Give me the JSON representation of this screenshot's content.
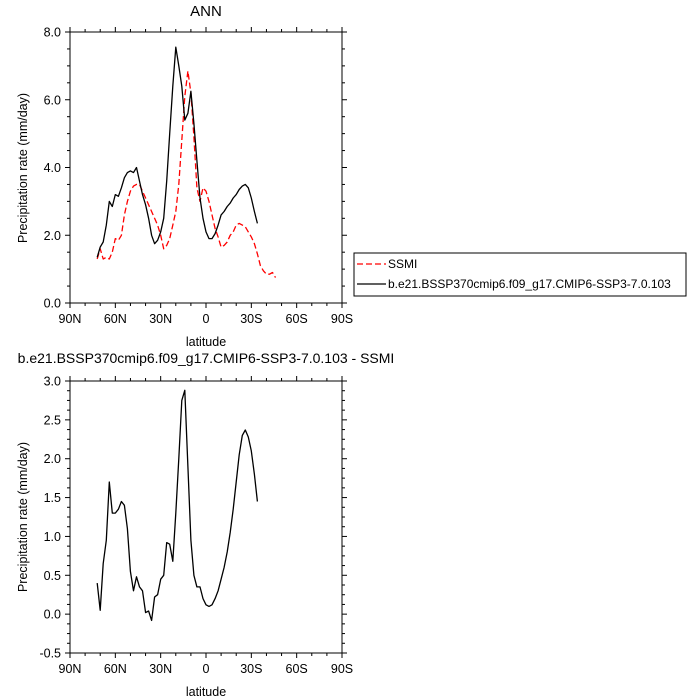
{
  "chart_data": [
    {
      "type": "line",
      "title": "ANN",
      "xlabel": "latitude",
      "ylabel": "Precipitation rate (mm/day)",
      "xlim": [
        90,
        -90
      ],
      "ylim": [
        0,
        8
      ],
      "xticks": [
        {
          "v": 90,
          "label": "90N"
        },
        {
          "v": 60,
          "label": "60N"
        },
        {
          "v": 30,
          "label": "30N"
        },
        {
          "v": 0,
          "label": "0"
        },
        {
          "v": -30,
          "label": "30S"
        },
        {
          "v": -60,
          "label": "60S"
        },
        {
          "v": -90,
          "label": "90S"
        }
      ],
      "yticks": [
        {
          "v": 0,
          "label": "0.0"
        },
        {
          "v": 2,
          "label": "2.0"
        },
        {
          "v": 4,
          "label": "4.0"
        },
        {
          "v": 6,
          "label": "6.0"
        },
        {
          "v": 8,
          "label": "8.0"
        }
      ],
      "legend": "right",
      "series": [
        {
          "name": "SSMI",
          "color": "#ff0000",
          "dash": true,
          "points": [
            [
              72,
              1.3
            ],
            [
              70,
              1.6
            ],
            [
              68,
              1.3
            ],
            [
              66,
              1.35
            ],
            [
              64,
              1.3
            ],
            [
              62,
              1.5
            ],
            [
              60,
              1.9
            ],
            [
              58,
              1.85
            ],
            [
              56,
              2.0
            ],
            [
              54,
              2.6
            ],
            [
              52,
              3.0
            ],
            [
              50,
              3.3
            ],
            [
              48,
              3.45
            ],
            [
              46,
              3.5
            ],
            [
              44,
              3.5
            ],
            [
              42,
              3.3
            ],
            [
              40,
              3.1
            ],
            [
              38,
              2.9
            ],
            [
              36,
              2.7
            ],
            [
              34,
              2.5
            ],
            [
              32,
              2.3
            ],
            [
              30,
              2.0
            ],
            [
              28,
              1.6
            ],
            [
              26,
              1.7
            ],
            [
              24,
              1.9
            ],
            [
              22,
              2.3
            ],
            [
              20,
              2.7
            ],
            [
              18,
              3.5
            ],
            [
              16,
              4.8
            ],
            [
              14,
              6.1
            ],
            [
              12,
              6.85
            ],
            [
              10,
              6.2
            ],
            [
              8,
              4.9
            ],
            [
              6,
              3.4
            ],
            [
              4,
              3.0
            ],
            [
              2,
              3.4
            ],
            [
              0,
              3.3
            ],
            [
              -2,
              3.0
            ],
            [
              -4,
              2.6
            ],
            [
              -6,
              2.2
            ],
            [
              -8,
              1.95
            ],
            [
              -10,
              1.65
            ],
            [
              -12,
              1.7
            ],
            [
              -14,
              1.8
            ],
            [
              -16,
              2.0
            ],
            [
              -18,
              2.1
            ],
            [
              -20,
              2.3
            ],
            [
              -22,
              2.35
            ],
            [
              -24,
              2.3
            ],
            [
              -26,
              2.25
            ],
            [
              -28,
              2.1
            ],
            [
              -30,
              1.95
            ],
            [
              -32,
              1.75
            ],
            [
              -34,
              1.45
            ],
            [
              -36,
              1.1
            ],
            [
              -38,
              0.95
            ],
            [
              -40,
              0.85
            ],
            [
              -42,
              0.85
            ],
            [
              -44,
              0.9
            ],
            [
              -46,
              0.75
            ]
          ]
        },
        {
          "name": "b.e21.BSSP370cmip6.f09_g17.CMIP6-SSP3-7.0.103",
          "color": "#000000",
          "dash": false,
          "points": [
            [
              72,
              1.35
            ],
            [
              70,
              1.65
            ],
            [
              68,
              1.8
            ],
            [
              66,
              2.3
            ],
            [
              64,
              3.0
            ],
            [
              62,
              2.85
            ],
            [
              60,
              3.2
            ],
            [
              58,
              3.15
            ],
            [
              56,
              3.4
            ],
            [
              54,
              3.7
            ],
            [
              52,
              3.85
            ],
            [
              50,
              3.9
            ],
            [
              48,
              3.85
            ],
            [
              46,
              4.0
            ],
            [
              44,
              3.6
            ],
            [
              42,
              3.2
            ],
            [
              40,
              2.9
            ],
            [
              38,
              2.5
            ],
            [
              36,
              2.0
            ],
            [
              34,
              1.75
            ],
            [
              32,
              1.85
            ],
            [
              30,
              2.1
            ],
            [
              28,
              2.5
            ],
            [
              26,
              3.6
            ],
            [
              24,
              5.0
            ],
            [
              22,
              6.4
            ],
            [
              20,
              7.55
            ],
            [
              18,
              7.0
            ],
            [
              16,
              6.4
            ],
            [
              14,
              5.4
            ],
            [
              12,
              5.6
            ],
            [
              10,
              6.25
            ],
            [
              8,
              5.3
            ],
            [
              6,
              4.2
            ],
            [
              4,
              3.1
            ],
            [
              2,
              2.5
            ],
            [
              0,
              2.1
            ],
            [
              -2,
              1.9
            ],
            [
              -4,
              1.9
            ],
            [
              -6,
              2.05
            ],
            [
              -8,
              2.3
            ],
            [
              -10,
              2.6
            ],
            [
              -12,
              2.7
            ],
            [
              -14,
              2.85
            ],
            [
              -16,
              2.95
            ],
            [
              -18,
              3.1
            ],
            [
              -20,
              3.2
            ],
            [
              -22,
              3.35
            ],
            [
              -24,
              3.45
            ],
            [
              -26,
              3.5
            ],
            [
              -28,
              3.4
            ],
            [
              -30,
              3.1
            ],
            [
              -32,
              2.7
            ],
            [
              -34,
              2.35
            ]
          ]
        }
      ]
    },
    {
      "type": "line",
      "title": "b.e21.BSSP370cmip6.f09_g17.CMIP6-SSP3-7.0.103 - SSMI",
      "xlabel": "latitude",
      "ylabel": "Precipitation rate (mm/day)",
      "xlim": [
        90,
        -90
      ],
      "ylim": [
        -0.5,
        3.0
      ],
      "xticks": [
        {
          "v": 90,
          "label": "90N"
        },
        {
          "v": 60,
          "label": "60N"
        },
        {
          "v": 30,
          "label": "30N"
        },
        {
          "v": 0,
          "label": "0"
        },
        {
          "v": -30,
          "label": "30S"
        },
        {
          "v": -60,
          "label": "60S"
        },
        {
          "v": -90,
          "label": "90S"
        }
      ],
      "yticks": [
        {
          "v": -0.5,
          "label": "-0.5"
        },
        {
          "v": 0,
          "label": "0.0"
        },
        {
          "v": 0.5,
          "label": "0.5"
        },
        {
          "v": 1.0,
          "label": "1.0"
        },
        {
          "v": 1.5,
          "label": "1.5"
        },
        {
          "v": 2.0,
          "label": "2.0"
        },
        {
          "v": 2.5,
          "label": "2.5"
        },
        {
          "v": 3.0,
          "label": "3.0"
        }
      ],
      "series": [
        {
          "color": "#000000",
          "dash": false,
          "points": [
            [
              72,
              0.4
            ],
            [
              70,
              0.05
            ],
            [
              68,
              0.65
            ],
            [
              66,
              0.95
            ],
            [
              64,
              1.7
            ],
            [
              62,
              1.3
            ],
            [
              60,
              1.3
            ],
            [
              58,
              1.35
            ],
            [
              56,
              1.45
            ],
            [
              54,
              1.4
            ],
            [
              52,
              1.1
            ],
            [
              50,
              0.55
            ],
            [
              48,
              0.3
            ],
            [
              46,
              0.48
            ],
            [
              44,
              0.35
            ],
            [
              42,
              0.3
            ],
            [
              40,
              0.02
            ],
            [
              38,
              0.04
            ],
            [
              36,
              -0.08
            ],
            [
              34,
              0.22
            ],
            [
              32,
              0.25
            ],
            [
              30,
              0.45
            ],
            [
              28,
              0.5
            ],
            [
              26,
              0.92
            ],
            [
              24,
              0.9
            ],
            [
              22,
              0.68
            ],
            [
              20,
              1.3
            ],
            [
              18,
              2.0
            ],
            [
              16,
              2.75
            ],
            [
              14,
              2.88
            ],
            [
              12,
              1.9
            ],
            [
              10,
              0.95
            ],
            [
              8,
              0.5
            ],
            [
              6,
              0.35
            ],
            [
              4,
              0.35
            ],
            [
              2,
              0.2
            ],
            [
              0,
              0.12
            ],
            [
              -2,
              0.1
            ],
            [
              -4,
              0.12
            ],
            [
              -6,
              0.2
            ],
            [
              -8,
              0.3
            ],
            [
              -10,
              0.45
            ],
            [
              -12,
              0.6
            ],
            [
              -14,
              0.8
            ],
            [
              -16,
              1.05
            ],
            [
              -18,
              1.35
            ],
            [
              -20,
              1.7
            ],
            [
              -22,
              2.05
            ],
            [
              -24,
              2.3
            ],
            [
              -26,
              2.37
            ],
            [
              -28,
              2.28
            ],
            [
              -30,
              2.1
            ],
            [
              -32,
              1.8
            ],
            [
              -34,
              1.45
            ]
          ]
        }
      ]
    }
  ]
}
